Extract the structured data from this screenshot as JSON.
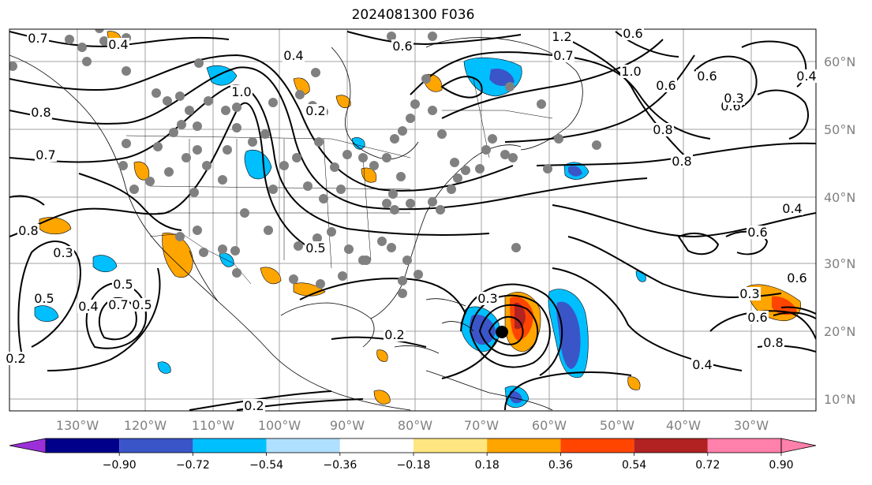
{
  "title": "2024081300 F036",
  "lat_labels": [
    "60°N",
    "50°N",
    "40°N",
    "30°N",
    "20°N",
    "10°N"
  ],
  "lon_labels": [
    "130°W",
    "120°W",
    "110°W",
    "100°W",
    "90°W",
    "80°W",
    "70°W",
    "60°W",
    "50°W",
    "40°W",
    "30°W"
  ],
  "colorbar": {
    "ticks": [
      "−0.90",
      "−0.72",
      "−0.54",
      "−0.36",
      "−0.18",
      "0.18",
      "0.36",
      "0.54",
      "0.72",
      "0.90"
    ],
    "colors": [
      "#9b30d9",
      "#00008b",
      "#3a55c8",
      "#00bfff",
      "#b0e0ff",
      "#ffffff",
      "#ffe680",
      "#ffa500",
      "#ff4500",
      "#b22222",
      "#ff80aa"
    ]
  },
  "contour_labels": [
    "0.7",
    "0.4",
    "0.8",
    "0.7",
    "0.4",
    "1.0",
    "1.2",
    "0.6",
    "0.7",
    "1.0",
    "0.8",
    "0.6",
    "0.6",
    "0.2",
    "0.8",
    "0.3",
    "0.4",
    "0.6",
    "0.6",
    "0.6",
    "0.5",
    "0.8",
    "0.3",
    "0.5",
    "0.4",
    "0.7",
    "0.6",
    "0.3",
    "0.2",
    "0.2",
    "0.2",
    "0.3",
    "0.4",
    "0.5",
    "0.6",
    "0.8",
    "0.4",
    "0.5"
  ]
}
